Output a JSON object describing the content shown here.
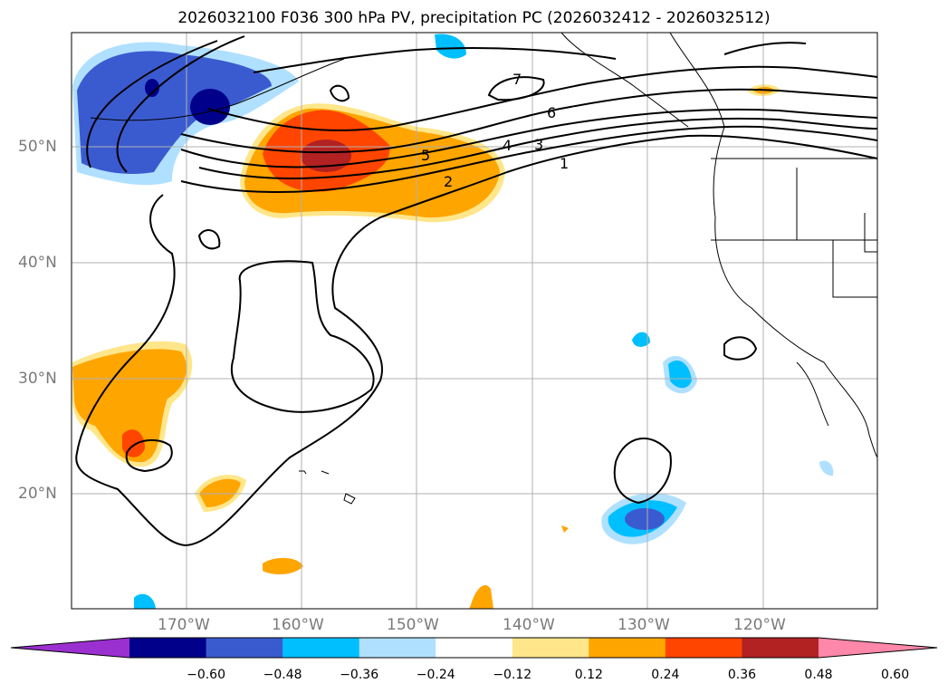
{
  "title": "2026032100 F036 300 hPa PV, precipitation PC (2026032412 - 2026032512)",
  "lat_labels": [
    "50°N",
    "40°N",
    "30°N",
    "20°N"
  ],
  "lon_labels": [
    "170°W",
    "160°W",
    "150°W",
    "140°W",
    "130°W",
    "120°W"
  ],
  "pv_contour_labels": [
    "1",
    "2",
    "3",
    "4",
    "5",
    "6",
    "7"
  ],
  "colorbar": {
    "ticks": [
      "−0.60",
      "−0.48",
      "−0.36",
      "−0.24",
      "−0.12",
      "0.12",
      "0.24",
      "0.36",
      "0.48",
      "0.60"
    ],
    "colors": [
      "#9b30d0",
      "#00008b",
      "#3a5bd0",
      "#00bfff",
      "#b0e0ff",
      "#ffffff",
      "#ffe68a",
      "#ffa500",
      "#ff4500",
      "#b22222",
      "#ff88aa"
    ]
  }
}
